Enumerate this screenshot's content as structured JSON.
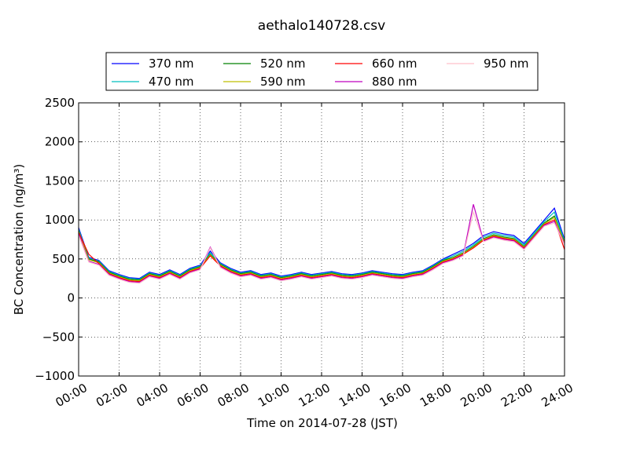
{
  "chart_data": {
    "type": "line",
    "title": "aethalo140728.csv",
    "xlabel": "Time on 2014-07-28 (JST)",
    "ylabel": "BC Concentration (ng/m³)",
    "ylim": [
      -1000,
      2500
    ],
    "xlim": [
      "00:00",
      "24:00"
    ],
    "grid": true,
    "legend_position": "top-center",
    "x_tick_labels": [
      "00:00",
      "02:00",
      "04:00",
      "06:00",
      "08:00",
      "10:00",
      "12:00",
      "14:00",
      "16:00",
      "18:00",
      "20:00",
      "22:00",
      "24:00"
    ],
    "y_ticks": [
      -1000,
      -500,
      0,
      500,
      1000,
      1500,
      2000,
      2500
    ],
    "y_tick_labels": [
      "−1000",
      "−500",
      "0",
      "500",
      "1000",
      "1500",
      "2000",
      "2500"
    ],
    "x_hours": [
      0,
      0.5,
      1,
      1.5,
      2,
      2.5,
      3,
      3.5,
      4,
      4.5,
      5,
      5.5,
      6,
      6.5,
      7,
      7.5,
      8,
      8.5,
      9,
      9.5,
      10,
      10.5,
      11,
      11.5,
      12,
      12.5,
      13,
      13.5,
      14,
      14.5,
      15,
      15.5,
      16,
      16.5,
      17,
      17.5,
      18,
      18.5,
      19,
      19.5,
      20,
      20.5,
      21,
      21.5,
      22,
      22.5,
      23,
      23.5,
      24
    ],
    "series": [
      {
        "name": "370 nm",
        "color": "#0000ff",
        "values": [
          900,
          520,
          480,
          350,
          300,
          260,
          250,
          330,
          300,
          360,
          300,
          380,
          420,
          600,
          450,
          380,
          330,
          350,
          300,
          320,
          280,
          300,
          330,
          300,
          320,
          340,
          310,
          300,
          320,
          350,
          330,
          310,
          300,
          330,
          350,
          420,
          500,
          560,
          620,
          700,
          800,
          850,
          820,
          800,
          700,
          850,
          1000,
          1150,
          750
        ]
      },
      {
        "name": "470 nm",
        "color": "#00bfbf",
        "values": [
          880,
          510,
          470,
          340,
          290,
          250,
          240,
          320,
          290,
          350,
          290,
          370,
          410,
          580,
          440,
          370,
          320,
          340,
          290,
          310,
          270,
          290,
          320,
          290,
          310,
          330,
          300,
          290,
          310,
          340,
          320,
          300,
          290,
          320,
          340,
          410,
          490,
          540,
          600,
          680,
          780,
          830,
          800,
          780,
          680,
          830,
          980,
          1100,
          730
        ]
      },
      {
        "name": "520 nm",
        "color": "#008000",
        "values": [
          860,
          500,
          460,
          330,
          280,
          240,
          230,
          310,
          280,
          340,
          280,
          360,
          400,
          560,
          430,
          360,
          310,
          330,
          280,
          300,
          260,
          280,
          310,
          280,
          300,
          320,
          290,
          280,
          300,
          330,
          310,
          290,
          280,
          310,
          330,
          400,
          480,
          520,
          580,
          660,
          760,
          810,
          780,
          760,
          660,
          810,
          960,
          1050,
          710
        ]
      },
      {
        "name": "590 nm",
        "color": "#bfbf00",
        "values": [
          850,
          490,
          450,
          320,
          270,
          230,
          220,
          300,
          270,
          330,
          270,
          350,
          390,
          550,
          420,
          350,
          300,
          320,
          270,
          290,
          250,
          270,
          300,
          270,
          290,
          310,
          280,
          270,
          290,
          320,
          300,
          280,
          270,
          300,
          320,
          390,
          470,
          510,
          570,
          650,
          750,
          800,
          770,
          750,
          650,
          800,
          950,
          1030,
          700
        ]
      },
      {
        "name": "660 nm",
        "color": "#ff0000",
        "values": [
          840,
          560,
          440,
          310,
          260,
          220,
          210,
          290,
          260,
          320,
          260,
          340,
          380,
          540,
          410,
          340,
          290,
          310,
          260,
          280,
          240,
          260,
          290,
          260,
          280,
          300,
          270,
          260,
          280,
          310,
          290,
          270,
          260,
          290,
          310,
          380,
          460,
          500,
          560,
          640,
          740,
          790,
          760,
          740,
          640,
          790,
          940,
          1000,
          620
        ]
      },
      {
        "name": "880 nm",
        "color": "#bf00bf",
        "values": [
          820,
          470,
          430,
          300,
          250,
          210,
          200,
          280,
          250,
          310,
          250,
          330,
          370,
          650,
          400,
          330,
          280,
          300,
          250,
          270,
          230,
          250,
          280,
          250,
          270,
          290,
          260,
          250,
          270,
          300,
          280,
          260,
          250,
          280,
          300,
          370,
          450,
          490,
          550,
          1200,
          730,
          780,
          750,
          730,
          630,
          780,
          930,
          980,
          690
        ]
      },
      {
        "name": "950 nm",
        "color": "#ffc0cb",
        "values": [
          800,
          460,
          420,
          290,
          240,
          200,
          190,
          270,
          240,
          300,
          240,
          320,
          360,
          640,
          390,
          320,
          270,
          290,
          240,
          260,
          220,
          240,
          270,
          240,
          260,
          280,
          250,
          240,
          260,
          290,
          270,
          250,
          240,
          270,
          290,
          360,
          440,
          480,
          540,
          1100,
          720,
          770,
          740,
          720,
          620,
          770,
          920,
          960,
          680
        ]
      }
    ]
  }
}
